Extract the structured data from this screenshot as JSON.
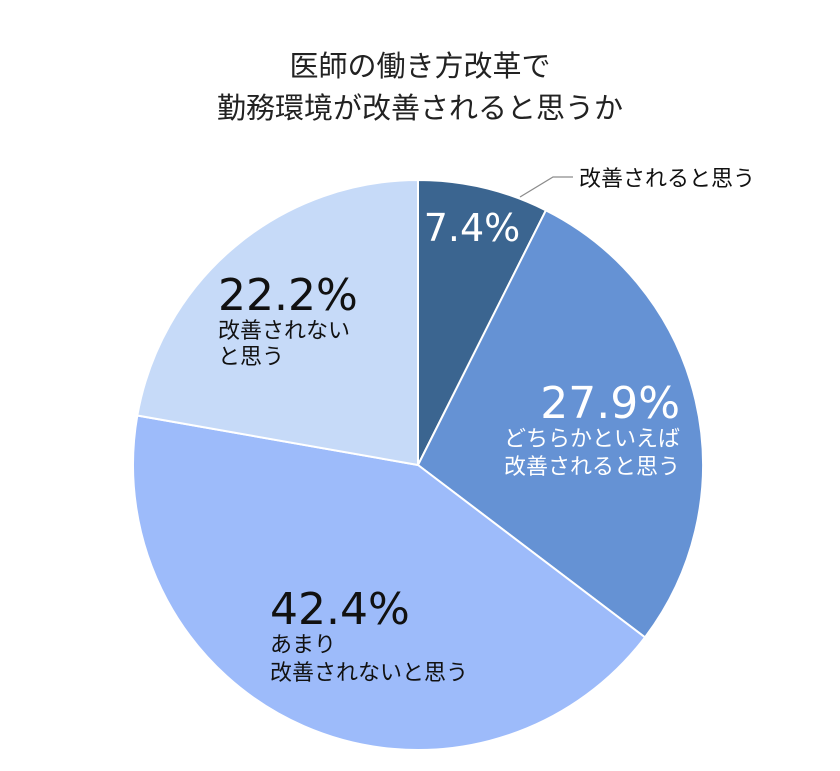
{
  "chart_data": {
    "type": "pie",
    "title_lines": [
      "医師の働き方改革で",
      "勤務環境が改善されると思うか"
    ],
    "slices": [
      {
        "label_lines": [
          "改善されると思う"
        ],
        "percent_label": "7.4%",
        "value": 7.4,
        "color": "#3b6590",
        "text_color": "#ffffff",
        "callout": true
      },
      {
        "label_lines": [
          "どちらかといえば",
          "改善されると思う"
        ],
        "percent_label": "27.9%",
        "value": 27.9,
        "color": "#6592d4",
        "text_color": "#ffffff",
        "callout": false
      },
      {
        "label_lines": [
          "あまり",
          "改善されないと思う"
        ],
        "percent_label": "42.4%",
        "value": 42.4,
        "color": "#9dbbfa",
        "text_color": "#111111",
        "callout": false
      },
      {
        "label_lines": [
          "改善されない",
          "と思う"
        ],
        "percent_label": "22.2%",
        "value": 22.2,
        "color": "#c6daf8",
        "text_color": "#111111",
        "callout": false
      }
    ],
    "start_angle_deg": 0,
    "direction": "clockwise"
  }
}
